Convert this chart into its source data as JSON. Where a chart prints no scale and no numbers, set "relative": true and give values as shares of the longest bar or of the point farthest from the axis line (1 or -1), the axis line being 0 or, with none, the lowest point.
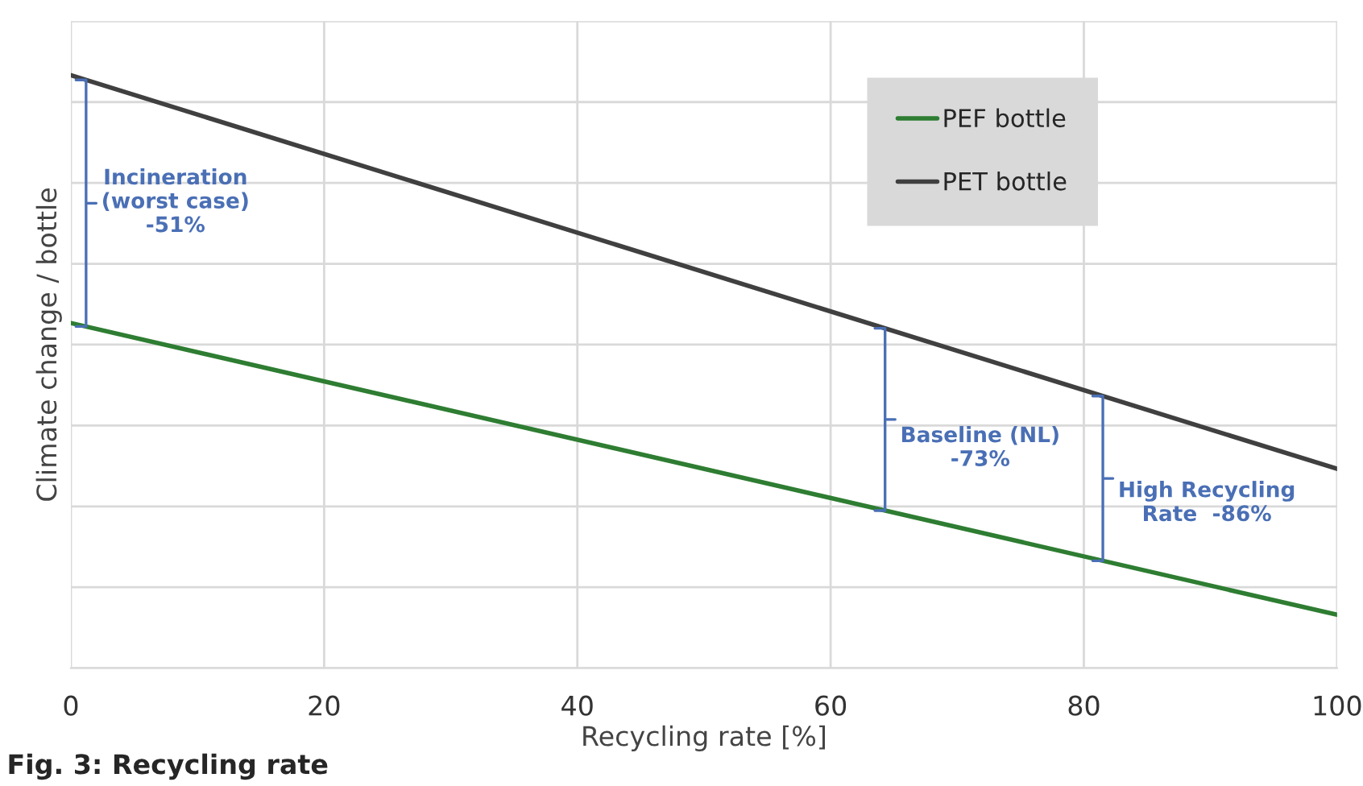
{
  "chart_data": {
    "type": "line",
    "xlabel": "Recycling rate [%]",
    "ylabel": "Climate change / bottle",
    "relative": true,
    "x": [
      0,
      100
    ],
    "xlim": [
      0,
      100
    ],
    "xticks": [
      0,
      20,
      40,
      60,
      80,
      100
    ],
    "series": [
      {
        "name": "PEF bottle",
        "color": "#2e7d32",
        "values": [
          0.582,
          0.09
        ]
      },
      {
        "name": "PET bottle",
        "color": "#404040",
        "values": [
          1,
          0.336
        ]
      }
    ],
    "annotations": [
      "Incineration\n(worst case)\n-51%",
      "Baseline (NL)\n-73%",
      "High Recycling\nRate  -86%",
      "Fig. 3: Recycling rate"
    ],
    "grid": true,
    "legend": "top right",
    "line_style": "solid",
    "marker": "none"
  }
}
